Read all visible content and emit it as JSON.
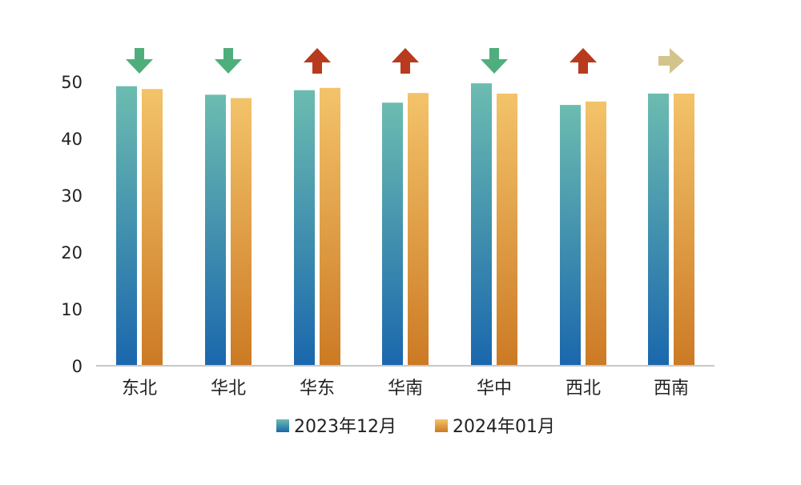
{
  "chart_data": {
    "type": "bar",
    "categories": [
      "东北",
      "华北",
      "华东",
      "华南",
      "华中",
      "西北",
      "西南"
    ],
    "series": [
      {
        "name": "2023年12月",
        "values": [
          49.2,
          47.7,
          48.5,
          46.3,
          49.7,
          45.9,
          47.9
        ]
      },
      {
        "name": "2024年01月",
        "values": [
          48.7,
          47.1,
          48.9,
          48.0,
          47.9,
          46.5,
          47.9
        ]
      }
    ],
    "ylim": [
      0,
      55
    ],
    "yticks": [
      0,
      10,
      20,
      30,
      40,
      50
    ],
    "trend_markers": [
      "down",
      "down",
      "up",
      "up",
      "down",
      "up",
      "flat"
    ],
    "legend_position": "bottom",
    "grid": false,
    "colors": {
      "series1_top": "#6cbcb0",
      "series1_bottom": "#1a67ad",
      "series2_top": "#f3c36a",
      "series2_bottom": "#cc7a24",
      "arrow_down": "#4fae7c",
      "arrow_up": "#b83a1f",
      "arrow_flat": "#d3c48b",
      "axis": "#c8c8c8"
    }
  }
}
